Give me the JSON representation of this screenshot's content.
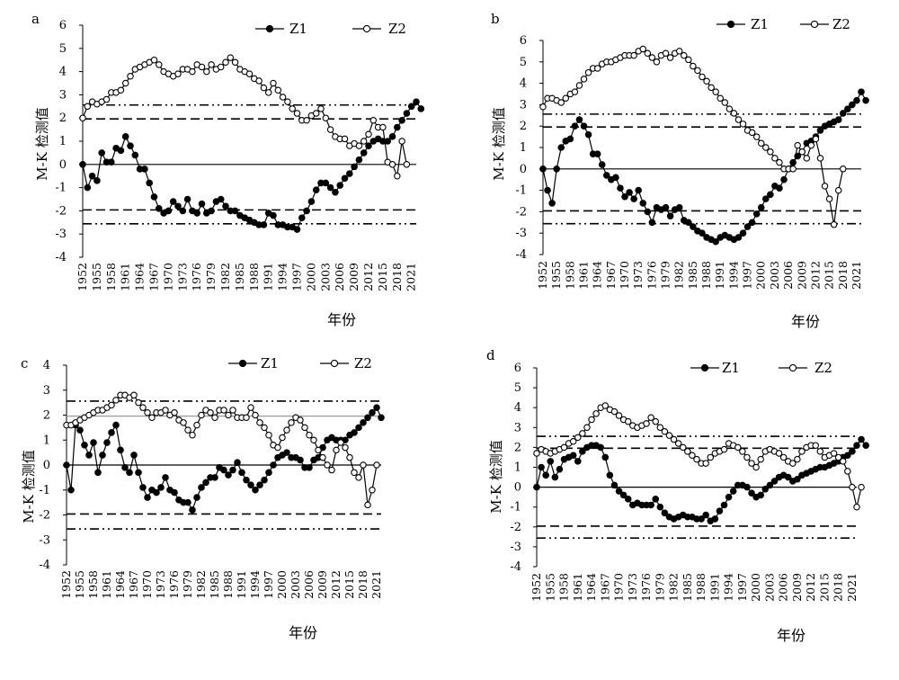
{
  "chart_data": [
    {
      "panel": "a",
      "type": "line",
      "ylabel": "M-K 检测值",
      "xlabel": "年份",
      "xtick_labels": [
        "1952",
        "1955",
        "1958",
        "1961",
        "1964",
        "1967",
        "1970",
        "1973",
        "1976",
        "1979",
        "1982",
        "1985",
        "1988",
        "1991",
        "1994",
        "1997",
        "2000",
        "2003",
        "2006",
        "2009",
        "2012",
        "2015",
        "2018",
        "2021"
      ],
      "ytick_labels": [
        "6",
        "5",
        "4",
        "3",
        "2",
        "1",
        "0",
        "-1",
        "-2",
        "-3",
        "-4"
      ],
      "x_range": [
        1952,
        2022
      ],
      "ylim": [
        -4,
        6
      ],
      "legend_position": "top-right",
      "ref_lines": {
        "dash": [
          1.96,
          -1.96
        ],
        "dashdot": [
          2.56,
          -2.56
        ],
        "solid": [
          0
        ]
      },
      "series": [
        {
          "name": "Z1",
          "marker": "filled",
          "x_start": 1952,
          "values": [
            0.0,
            -1.0,
            -0.5,
            -0.7,
            0.5,
            0.1,
            0.1,
            0.7,
            0.6,
            1.2,
            0.8,
            0.4,
            -0.2,
            -0.2,
            -0.8,
            -1.4,
            -1.9,
            -2.1,
            -2.0,
            -1.6,
            -1.8,
            -2.0,
            -1.5,
            -2.0,
            -2.1,
            -1.7,
            -2.1,
            -2.0,
            -1.6,
            -1.5,
            -1.8,
            -2.0,
            -2.0,
            -2.2,
            -2.3,
            -2.4,
            -2.5,
            -2.6,
            -2.6,
            -2.1,
            -2.2,
            -2.6,
            -2.6,
            -2.7,
            -2.7,
            -2.8,
            -2.3,
            -2.0,
            -1.6,
            -1.1,
            -0.8,
            -0.8,
            -1.0,
            -1.2,
            -0.9,
            -0.6,
            -0.4,
            -0.1,
            0.2,
            0.5,
            0.8,
            1.0,
            1.1,
            1.0,
            1.0,
            1.2,
            1.6,
            1.9,
            2.2,
            2.5,
            2.7,
            2.4
          ]
        },
        {
          "name": "Z2",
          "marker": "open",
          "x_start": 1952,
          "values": [
            2.0,
            2.5,
            2.7,
            2.6,
            2.7,
            2.8,
            3.1,
            3.1,
            3.2,
            3.5,
            3.8,
            4.1,
            4.2,
            4.3,
            4.4,
            4.5,
            4.3,
            4.0,
            3.9,
            3.8,
            3.9,
            4.1,
            4.1,
            4.0,
            4.3,
            4.2,
            4.0,
            4.3,
            4.1,
            4.2,
            4.4,
            4.6,
            4.4,
            4.1,
            4.0,
            3.9,
            3.7,
            3.6,
            3.3,
            3.1,
            3.5,
            3.2,
            2.9,
            2.7,
            2.4,
            2.2,
            1.9,
            1.9,
            2.1,
            2.2,
            2.4,
            2.0,
            1.5,
            1.2,
            1.1,
            1.1,
            0.8,
            0.9,
            0.8,
            1.0,
            1.3,
            1.9,
            1.6,
            1.6,
            0.1,
            0.0,
            -0.5,
            1.0,
            0.0
          ]
        }
      ]
    },
    {
      "panel": "b",
      "type": "line",
      "ylabel": "M-K 检测值",
      "xlabel": "年份",
      "xtick_labels": [
        "1952",
        "1955",
        "1958",
        "1961",
        "1964",
        "1967",
        "1970",
        "1973",
        "1976",
        "1979",
        "1982",
        "1985",
        "1988",
        "1991",
        "1994",
        "1997",
        "2000",
        "2003",
        "2006",
        "2009",
        "2012",
        "2015",
        "2018",
        "2021"
      ],
      "ytick_labels": [
        "6",
        "5",
        "4",
        "3",
        "2",
        "1",
        "0",
        "-1",
        "-2",
        "-3",
        "-4"
      ],
      "x_range": [
        1952,
        2022
      ],
      "ylim": [
        -4,
        6
      ],
      "legend_position": "top-right",
      "ref_lines": {
        "dash": [
          1.96,
          -1.96
        ],
        "dashdot": [
          2.56,
          -2.56
        ],
        "solid": [
          0
        ]
      },
      "series": [
        {
          "name": "Z1",
          "marker": "filled",
          "x_start": 1952,
          "values": [
            0.0,
            -1.0,
            -1.6,
            0.0,
            1.0,
            1.3,
            1.4,
            2.0,
            2.3,
            2.0,
            1.6,
            0.7,
            0.7,
            0.2,
            -0.3,
            -0.5,
            -0.4,
            -0.9,
            -1.3,
            -1.1,
            -1.4,
            -1.0,
            -1.6,
            -2.0,
            -2.5,
            -1.8,
            -1.9,
            -1.8,
            -2.2,
            -1.9,
            -1.8,
            -2.4,
            -2.5,
            -2.7,
            -2.9,
            -3.0,
            -3.2,
            -3.3,
            -3.4,
            -3.2,
            -3.1,
            -3.2,
            -3.3,
            -3.2,
            -3.0,
            -2.7,
            -2.5,
            -2.1,
            -1.8,
            -1.4,
            -1.2,
            -0.8,
            -0.9,
            -0.5,
            0.0,
            0.3,
            0.6,
            0.8,
            1.2,
            1.3,
            1.5,
            1.8,
            2.0,
            2.1,
            2.2,
            2.3,
            2.6,
            2.8,
            3.0,
            3.2,
            3.6,
            3.2
          ]
        },
        {
          "name": "Z2",
          "marker": "open",
          "x_start": 1952,
          "values": [
            2.9,
            3.3,
            3.3,
            3.2,
            3.1,
            3.3,
            3.5,
            3.6,
            3.9,
            4.2,
            4.5,
            4.7,
            4.7,
            4.9,
            5.0,
            5.0,
            5.1,
            5.2,
            5.3,
            5.3,
            5.3,
            5.5,
            5.6,
            5.4,
            5.2,
            5.0,
            5.3,
            5.4,
            5.2,
            5.4,
            5.5,
            5.3,
            5.1,
            4.8,
            4.6,
            4.3,
            4.1,
            3.8,
            3.6,
            3.3,
            3.1,
            2.8,
            2.6,
            2.3,
            2.1,
            1.8,
            1.7,
            1.5,
            1.2,
            1.0,
            0.8,
            0.5,
            0.3,
            0.0,
            0.0,
            0.0,
            1.1,
            0.8,
            0.5,
            1.1,
            1.4,
            0.5,
            -0.8,
            -1.4,
            -2.6,
            -1.0,
            0.0
          ]
        }
      ]
    },
    {
      "panel": "c",
      "type": "line",
      "ylabel": "M-K 检测值",
      "xlabel": "年份",
      "xtick_labels": [
        "1952",
        "1955",
        "1958",
        "1961",
        "1964",
        "1967",
        "1970",
        "1973",
        "1976",
        "1979",
        "1982",
        "1985",
        "1988",
        "1991",
        "1994",
        "1997",
        "2000",
        "2003",
        "2006",
        "2009",
        "2012",
        "2015",
        "2018",
        "2021"
      ],
      "ytick_labels": [
        "4",
        "3",
        "2",
        "1",
        "0",
        "-1",
        "-2",
        "-3",
        "-4"
      ],
      "x_range": [
        1952,
        2022
      ],
      "ylim": [
        -4,
        4
      ],
      "legend_position": "top-right",
      "ref_lines": {
        "dash": [
          -1.96
        ],
        "solid_grey": [
          1.96
        ],
        "dashdot": [
          2.56,
          -2.56
        ],
        "solid": [
          0
        ]
      },
      "series": [
        {
          "name": "Z1",
          "marker": "filled",
          "x_start": 1952,
          "values": [
            0.0,
            -1.0,
            1.6,
            1.4,
            0.8,
            0.4,
            0.9,
            -0.3,
            0.4,
            0.9,
            1.3,
            1.6,
            0.6,
            -0.1,
            -0.3,
            0.4,
            -0.3,
            -0.9,
            -1.3,
            -1.0,
            -1.1,
            -0.9,
            -0.5,
            -1.0,
            -1.1,
            -1.4,
            -1.5,
            -1.5,
            -1.8,
            -1.3,
            -0.9,
            -0.7,
            -0.5,
            -0.5,
            -0.1,
            -0.2,
            -0.4,
            -0.2,
            0.1,
            -0.3,
            -0.6,
            -0.8,
            -1.0,
            -0.8,
            -0.6,
            -0.3,
            0.0,
            0.3,
            0.4,
            0.5,
            0.3,
            0.3,
            0.2,
            -0.1,
            -0.1,
            0.2,
            0.3,
            0.7,
            1.0,
            1.1,
            1.0,
            1.0,
            1.0,
            1.2,
            1.3,
            1.5,
            1.7,
            1.9,
            2.1,
            2.3,
            1.9
          ]
        },
        {
          "name": "Z2",
          "marker": "open",
          "x_start": 1952,
          "values": [
            1.6,
            1.6,
            1.7,
            1.8,
            1.9,
            2.0,
            2.1,
            2.2,
            2.2,
            2.3,
            2.4,
            2.6,
            2.8,
            2.8,
            2.7,
            2.8,
            2.5,
            2.3,
            2.1,
            1.9,
            2.1,
            2.1,
            2.2,
            2.0,
            2.1,
            1.8,
            1.7,
            1.4,
            1.2,
            1.6,
            2.0,
            2.2,
            2.1,
            1.9,
            2.2,
            2.2,
            2.0,
            2.2,
            1.9,
            1.9,
            1.9,
            2.3,
            2.0,
            1.7,
            1.5,
            1.2,
            0.8,
            0.7,
            1.1,
            1.4,
            1.7,
            1.9,
            1.8,
            1.5,
            1.2,
            1.0,
            0.6,
            0.3,
            0.0,
            -0.2,
            0.6,
            0.9,
            0.7,
            0.3,
            -0.3,
            -0.5,
            0.0,
            -1.6,
            -1.0,
            0.0
          ]
        }
      ]
    },
    {
      "panel": "d",
      "type": "line",
      "ylabel": "M-K 检测值",
      "xlabel": "年份",
      "xtick_labels": [
        "1952",
        "1955",
        "1958",
        "1961",
        "1964",
        "1967",
        "1970",
        "1973",
        "1976",
        "1979",
        "1982",
        "1985",
        "1988",
        "1991",
        "1994",
        "1997",
        "2000",
        "2003",
        "2006",
        "2009",
        "2012",
        "2015",
        "2018",
        "2021"
      ],
      "ytick_labels": [
        "6",
        "5",
        "4",
        "3",
        "2",
        "1",
        "0",
        "-1",
        "-2",
        "-3",
        "-4"
      ],
      "x_range": [
        1952,
        2022
      ],
      "ylim": [
        -4,
        6
      ],
      "legend_position": "top-right",
      "ref_lines": {
        "dash": [
          1.96,
          -1.96
        ],
        "dashdot": [
          2.56,
          -2.56
        ],
        "solid": [
          0
        ]
      },
      "series": [
        {
          "name": "Z1",
          "marker": "filled",
          "x_start": 1952,
          "values": [
            0.0,
            1.0,
            0.6,
            1.3,
            0.5,
            0.9,
            1.4,
            1.5,
            1.6,
            1.3,
            1.8,
            2.0,
            2.1,
            2.1,
            2.0,
            1.5,
            0.6,
            0.1,
            -0.2,
            -0.4,
            -0.6,
            -0.9,
            -0.8,
            -0.9,
            -0.9,
            -0.9,
            -0.6,
            -1.0,
            -1.3,
            -1.5,
            -1.6,
            -1.5,
            -1.4,
            -1.5,
            -1.5,
            -1.6,
            -1.6,
            -1.4,
            -1.7,
            -1.6,
            -1.2,
            -0.9,
            -0.5,
            -0.2,
            0.1,
            0.1,
            0.0,
            -0.3,
            -0.5,
            -0.4,
            -0.1,
            0.1,
            0.3,
            0.5,
            0.6,
            0.5,
            0.3,
            0.4,
            0.6,
            0.7,
            0.8,
            0.9,
            1.0,
            1.0,
            1.1,
            1.2,
            1.3,
            1.5,
            1.6,
            1.8,
            2.1,
            2.4,
            2.1
          ]
        },
        {
          "name": "Z2",
          "marker": "open",
          "x_start": 1952,
          "values": [
            1.7,
            1.9,
            1.8,
            1.7,
            1.8,
            1.9,
            2.0,
            2.2,
            2.3,
            2.5,
            2.7,
            3.0,
            3.4,
            3.7,
            4.0,
            4.1,
            3.9,
            3.8,
            3.6,
            3.4,
            3.3,
            3.1,
            3.0,
            3.1,
            3.2,
            3.5,
            3.3,
            3.0,
            2.8,
            2.6,
            2.4,
            2.2,
            2.0,
            1.8,
            1.6,
            1.4,
            1.2,
            1.2,
            1.5,
            1.7,
            1.8,
            1.9,
            2.2,
            2.1,
            2.0,
            1.8,
            1.5,
            1.2,
            1.0,
            1.4,
            1.8,
            1.9,
            1.8,
            1.7,
            1.5,
            1.3,
            1.2,
            1.4,
            1.8,
            2.0,
            2.1,
            2.1,
            1.8,
            1.5,
            1.6,
            1.7,
            1.5,
            1.3,
            0.8,
            0.0,
            -1.0,
            0.0
          ]
        }
      ]
    }
  ]
}
